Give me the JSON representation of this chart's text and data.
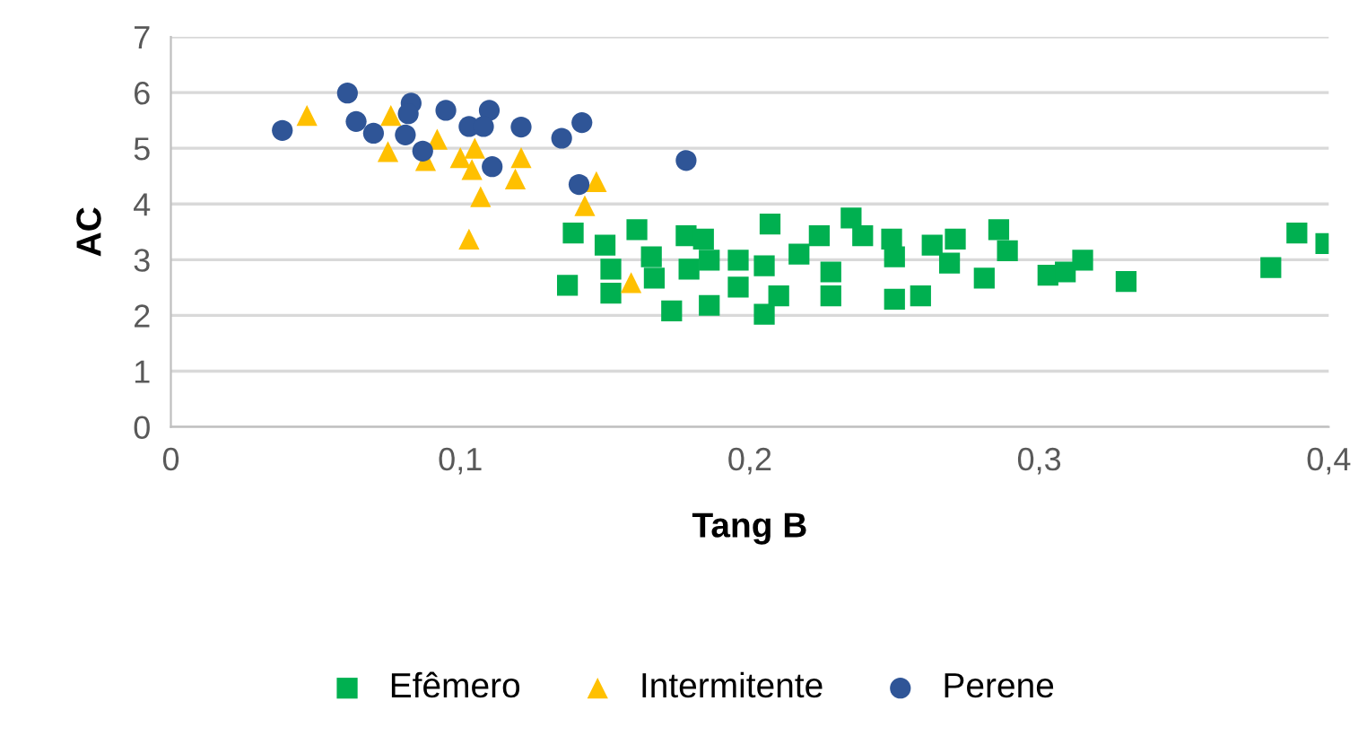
{
  "chart_data": {
    "type": "scatter",
    "xlabel": "Tang B",
    "ylabel": "AC",
    "xlim": [
      0,
      0.4
    ],
    "xticks": [
      0,
      {
        "value": 0.1,
        "label": "0,1"
      },
      {
        "value": 0.2,
        "label": "0,2"
      },
      {
        "value": 0.3,
        "label": "0,3"
      },
      {
        "value": 0.4,
        "label": "0,4"
      }
    ],
    "ylim": [
      0,
      7
    ],
    "yticks": [
      0,
      1,
      2,
      3,
      4,
      5,
      6,
      7
    ],
    "grid": "y",
    "legend": "bottom",
    "series": [
      {
        "name": "Efêmero",
        "color": "#00b050",
        "marker": "square",
        "x": [
          0.139,
          0.137,
          0.15,
          0.161,
          0.152,
          0.152,
          0.166,
          0.167,
          0.173,
          0.178,
          0.179,
          0.184,
          0.186,
          0.186,
          0.196,
          0.196,
          0.205,
          0.207,
          0.205,
          0.21,
          0.217,
          0.224,
          0.228,
          0.228,
          0.235,
          0.239,
          0.249,
          0.25,
          0.25,
          0.259,
          0.263,
          0.271,
          0.269,
          0.286,
          0.289,
          0.281,
          0.303,
          0.309,
          0.315,
          0.33,
          0.38,
          0.389,
          0.399
        ],
        "values": [
          3.48,
          2.54,
          3.26,
          3.54,
          2.83,
          2.4,
          3.05,
          2.67,
          2.08,
          3.43,
          2.83,
          3.37,
          2.99,
          2.18,
          2.99,
          2.51,
          2.89,
          3.64,
          2.02,
          2.35,
          3.1,
          3.43,
          2.78,
          2.35,
          3.75,
          3.43,
          3.37,
          3.05,
          2.29,
          2.35,
          3.26,
          3.37,
          2.94,
          3.54,
          3.16,
          2.67,
          2.72,
          2.78,
          2.99,
          2.61,
          2.86,
          3.48,
          3.29
        ]
      },
      {
        "name": "Intermitente",
        "color": "#ffc000",
        "marker": "triangle",
        "x": [
          0.047,
          0.076,
          0.075,
          0.088,
          0.092,
          0.1,
          0.105,
          0.104,
          0.107,
          0.103,
          0.121,
          0.119,
          0.147,
          0.143,
          0.159
        ],
        "values": [
          5.59,
          5.59,
          4.94,
          4.78,
          5.16,
          4.83,
          5.0,
          4.62,
          4.13,
          3.37,
          4.83,
          4.45,
          4.4,
          3.97,
          2.59
        ]
      },
      {
        "name": "Perene",
        "color": "#2f5597",
        "marker": "circle",
        "x": [
          0.0385,
          0.061,
          0.064,
          0.07,
          0.083,
          0.082,
          0.081,
          0.087,
          0.095,
          0.103,
          0.11,
          0.108,
          0.111,
          0.121,
          0.135,
          0.142,
          0.141,
          0.178
        ],
        "values": [
          5.32,
          5.99,
          5.48,
          5.27,
          5.81,
          5.62,
          5.24,
          4.95,
          5.68,
          5.39,
          5.68,
          5.39,
          4.67,
          5.38,
          5.18,
          5.46,
          4.35,
          4.78
        ]
      }
    ]
  }
}
